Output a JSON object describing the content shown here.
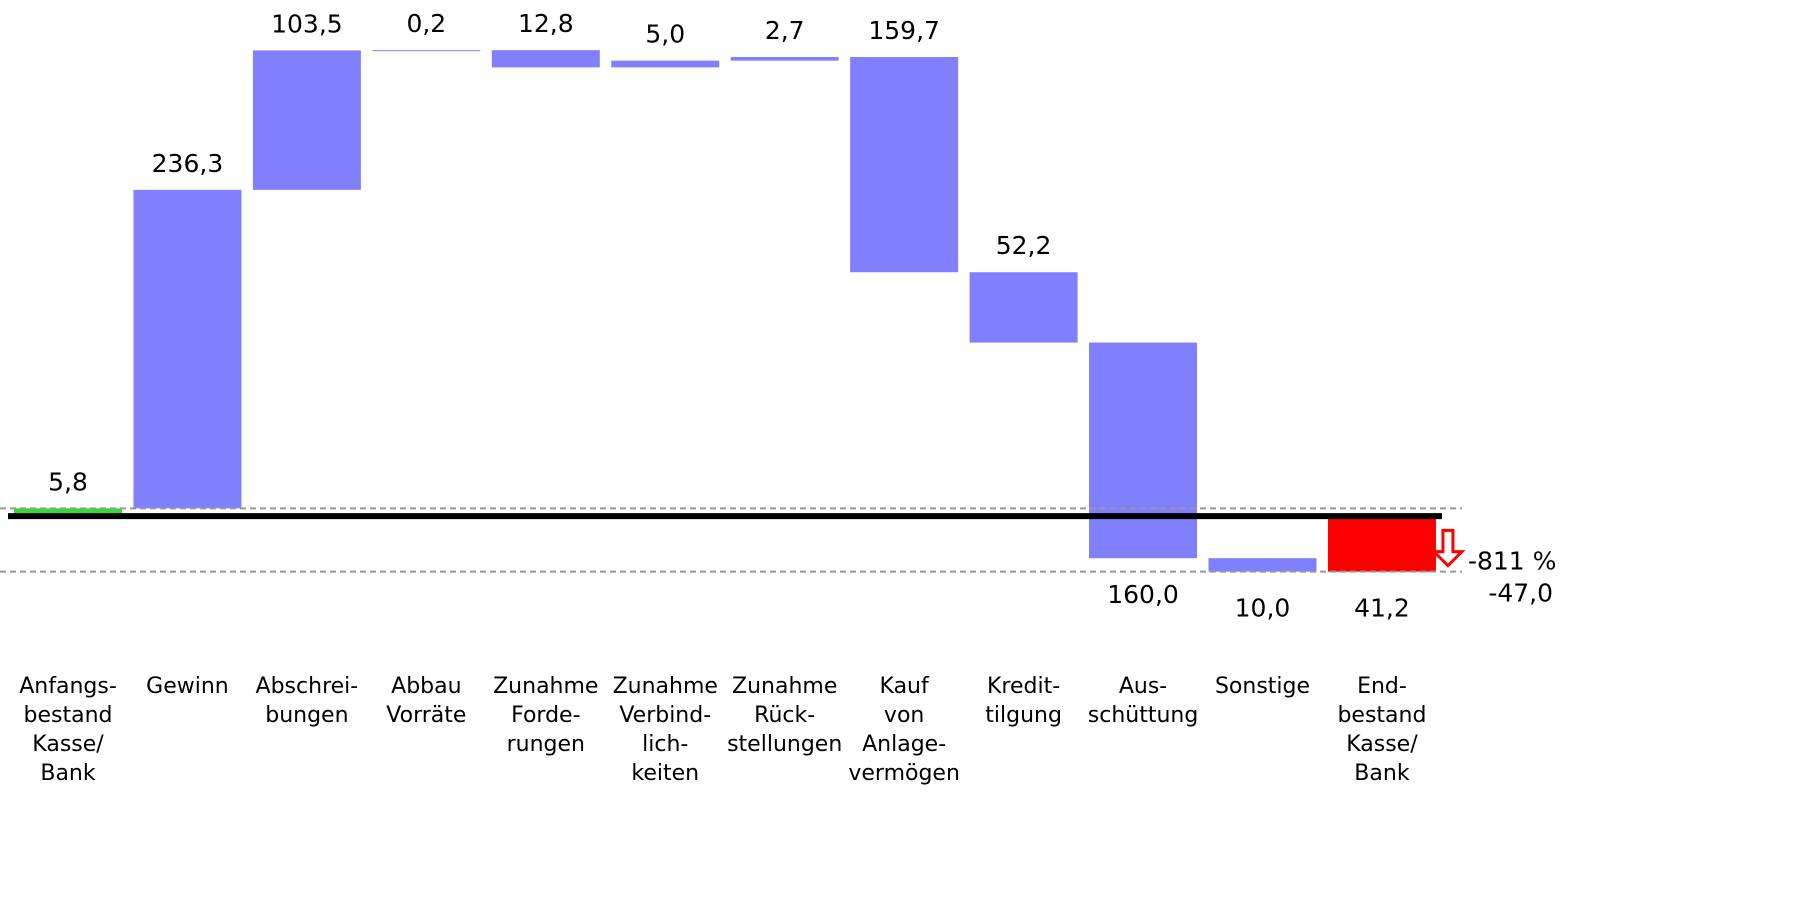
{
  "chart_data": {
    "type": "waterfall",
    "categories": [
      "Anfangs-\nbestand\nKasse/\nBank",
      "Gewinn",
      "Abschrei-\nbungen",
      "Abbau\nVorräte",
      "Zunahme\nForde-\nrungen",
      "Zunahme\nVerbind-\nlich-\nkeiten",
      "Zunahme\nRück-\nstellungen",
      "Kauf\nvon\nAnlage-\nvermögen",
      "Kredit-\ntilgung",
      "Aus-\nschüttung",
      "Sonstige",
      "End-\nbestand\nKasse/\nBank"
    ],
    "values": [
      5.8,
      236.3,
      103.5,
      0.2,
      -12.8,
      5.0,
      2.7,
      -159.7,
      -52.2,
      -160.0,
      -10.0,
      -41.2
    ],
    "value_labels": [
      "5,8",
      "236,3",
      "103,5",
      "0,2",
      "12,8",
      "5,0",
      "2,7",
      "159,7",
      "52,2",
      "160,0",
      "10,0",
      "41,2"
    ],
    "total": [
      true,
      false,
      false,
      false,
      false,
      false,
      false,
      false,
      false,
      false,
      false,
      true
    ],
    "colors": [
      "#33dd33",
      "#8080ff",
      "#8080ff",
      "#8080ff",
      "#8080ff",
      "#8080ff",
      "#8080ff",
      "#8080ff",
      "#8080ff",
      "#8080ff",
      "#8080ff",
      "#ff0000"
    ],
    "change": -47.0,
    "change_label": "-47,0",
    "change_pct": -811,
    "change_pct_label": "-811 %",
    "ylim": [
      -60,
      360
    ]
  }
}
